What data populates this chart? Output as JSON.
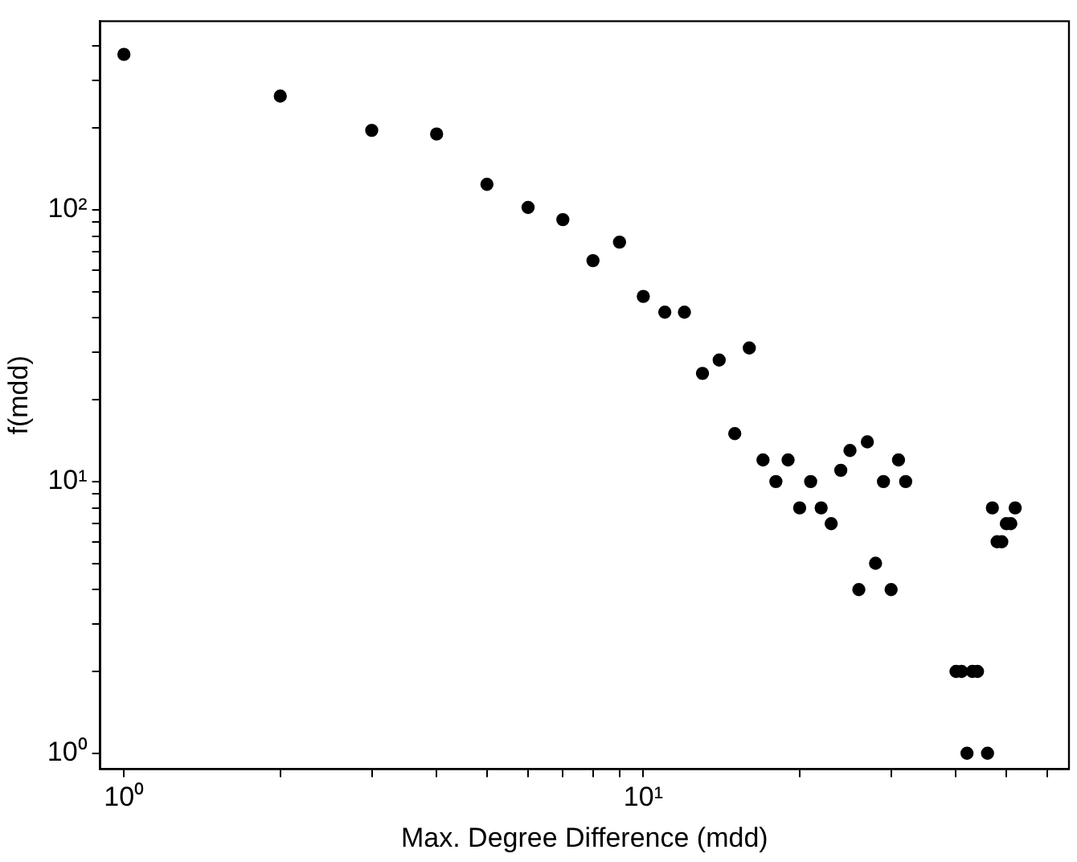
{
  "chart_data": {
    "type": "scatter",
    "xlabel": "Max. Degree Difference (mdd)",
    "ylabel": "f(mdd)",
    "log": "xy",
    "grid": false,
    "legend": false,
    "marker": "circle",
    "xlim": [
      0.9,
      66
    ],
    "ylim": [
      0.875,
      494
    ],
    "xticks": [
      {
        "value": 1,
        "label": "10⁰"
      },
      {
        "value": 2,
        "label": null
      },
      {
        "value": 3,
        "label": null
      },
      {
        "value": 4,
        "label": null
      },
      {
        "value": 5,
        "label": null
      },
      {
        "value": 6,
        "label": null
      },
      {
        "value": 7,
        "label": null
      },
      {
        "value": 8,
        "label": null
      },
      {
        "value": 9,
        "label": null
      },
      {
        "value": 10,
        "label": "10¹"
      },
      {
        "value": 20,
        "label": null
      },
      {
        "value": 30,
        "label": null
      },
      {
        "value": 40,
        "label": null
      },
      {
        "value": 50,
        "label": null
      },
      {
        "value": 60,
        "label": null
      }
    ],
    "yticks": [
      {
        "value": 1,
        "label": "10⁰"
      },
      {
        "value": 2,
        "label": null
      },
      {
        "value": 3,
        "label": null
      },
      {
        "value": 4,
        "label": null
      },
      {
        "value": 5,
        "label": null
      },
      {
        "value": 6,
        "label": null
      },
      {
        "value": 7,
        "label": null
      },
      {
        "value": 8,
        "label": null
      },
      {
        "value": 9,
        "label": null
      },
      {
        "value": 10,
        "label": "10¹"
      },
      {
        "value": 20,
        "label": null
      },
      {
        "value": 30,
        "label": null
      },
      {
        "value": 40,
        "label": null
      },
      {
        "value": 50,
        "label": null
      },
      {
        "value": 60,
        "label": null
      },
      {
        "value": 70,
        "label": null
      },
      {
        "value": 80,
        "label": null
      },
      {
        "value": 90,
        "label": null
      },
      {
        "value": 100,
        "label": "10²"
      },
      {
        "value": 200,
        "label": null
      },
      {
        "value": 300,
        "label": null
      },
      {
        "value": 400,
        "label": null
      }
    ],
    "series": [
      {
        "color": "#000000",
        "x": [
          1,
          2,
          3,
          4,
          5,
          6,
          7,
          8,
          9,
          10,
          11,
          12,
          13,
          14,
          15,
          16,
          17,
          18,
          19,
          20,
          21,
          22,
          23,
          24,
          25,
          26,
          27,
          28,
          29,
          30,
          31,
          32,
          40,
          41,
          42,
          43,
          44,
          46,
          47,
          48,
          49,
          50,
          51,
          52
        ],
        "values": [
          373,
          262,
          196,
          190,
          124,
          102,
          92,
          65,
          76,
          48,
          42,
          42,
          25,
          28,
          15,
          31,
          12,
          10,
          12,
          8,
          10,
          8,
          7,
          11,
          13,
          4,
          14,
          5,
          10,
          4,
          12,
          10,
          2,
          2,
          1,
          2,
          2,
          1,
          8,
          6,
          6,
          7,
          7,
          8
        ]
      }
    ]
  }
}
